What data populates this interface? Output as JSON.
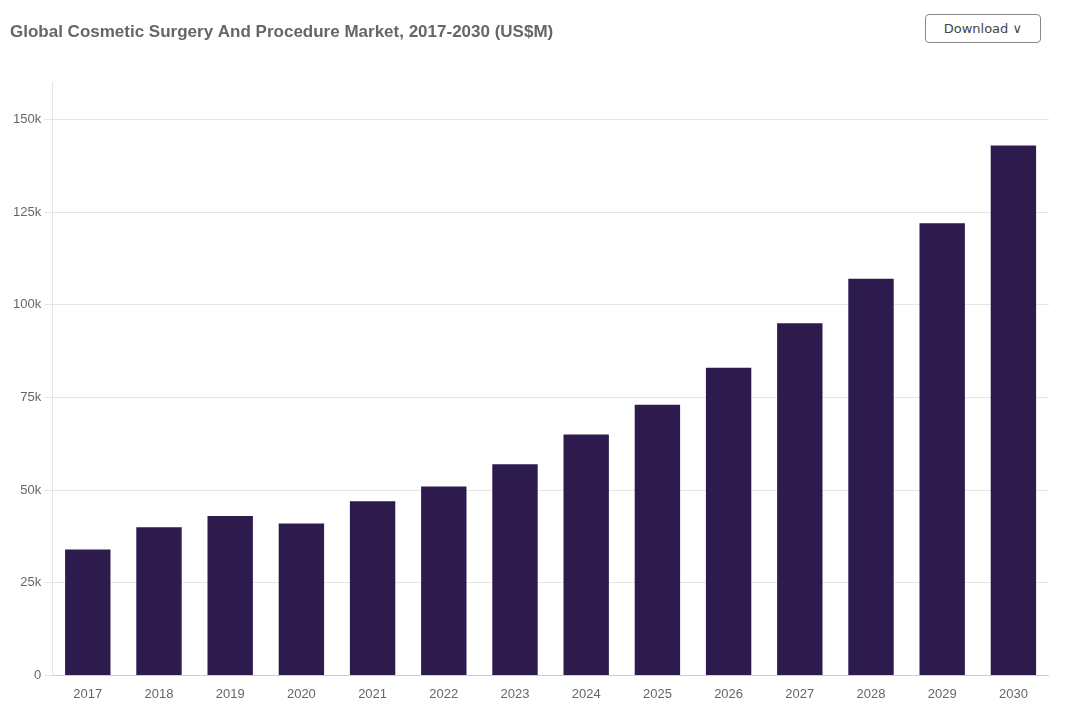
{
  "chart_data": {
    "type": "bar",
    "title": "Global Cosmetic Surgery And Procedure Market, 2017-2030 (US$M)",
    "categories": [
      "2017",
      "2018",
      "2019",
      "2020",
      "2021",
      "2022",
      "2023",
      "2024",
      "2025",
      "2026",
      "2027",
      "2028",
      "2029",
      "2030"
    ],
    "values": [
      34000,
      40000,
      43000,
      41000,
      47000,
      51000,
      57000,
      65000,
      73000,
      83000,
      95000,
      107000,
      122000,
      143000
    ],
    "color": "#2d1b4e",
    "ylim": [
      0,
      160000
    ],
    "yticks": [
      0,
      {
        "value": 25000,
        "label": "25k"
      },
      {
        "value": 50000,
        "label": "50k"
      },
      {
        "value": 75000,
        "label": "75k"
      },
      {
        "value": 100000,
        "label": "100k"
      },
      {
        "value": 125000,
        "label": "125k"
      },
      {
        "value": 150000,
        "label": "150k"
      }
    ],
    "grid": true,
    "annotations": [
      "Download  ∨"
    ]
  }
}
